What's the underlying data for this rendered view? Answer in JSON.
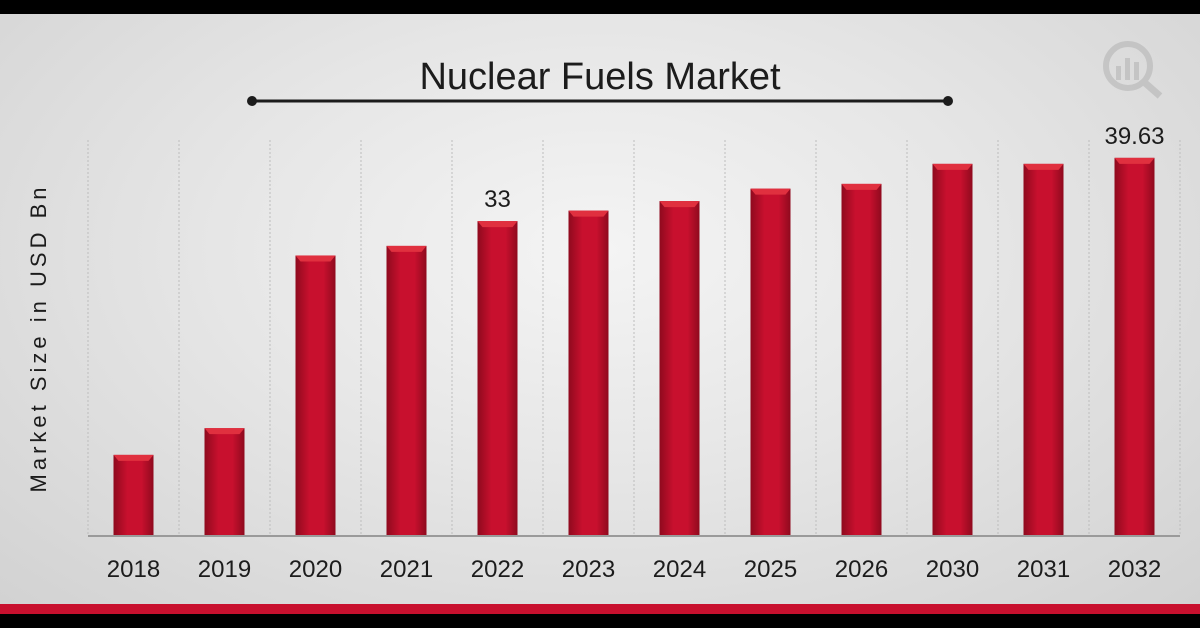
{
  "chart_data": {
    "type": "bar",
    "title": "Nuclear Fuels Market",
    "xlabel": "",
    "ylabel": "Market Size in USD Bn",
    "categories": [
      "2018",
      "2019",
      "2020",
      "2021",
      "2022",
      "2023",
      "2024",
      "2025",
      "2026",
      "2030",
      "2031",
      "2032"
    ],
    "values": [
      8.5,
      11.3,
      29.4,
      30.4,
      33,
      34.1,
      35.1,
      36.4,
      36.9,
      39.0,
      39.0,
      39.63
    ],
    "data_labels": {
      "2022": "33",
      "2032": "39.63"
    },
    "ylim": [
      0,
      41.5
    ],
    "grid": "vertical",
    "colors": {
      "bar": "#c8102e",
      "bar_dark": "#8f0a1e",
      "bar_top": "#e0303f",
      "grid": "#bdbdbd"
    }
  }
}
